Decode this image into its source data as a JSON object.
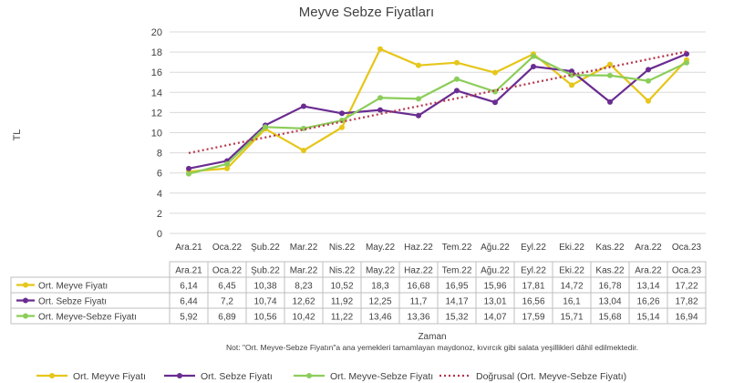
{
  "chart_data": {
    "type": "line",
    "title": "Meyve Sebze Fiyatları",
    "ylabel": "TL",
    "xlabel": "Zaman",
    "note": "Not: \"Ort. Meyve-Sebze Fiyatın\"a ana yemekleri tamamlayan maydonoz, kıvırcık gibi salata yeşillikleri dâhil edilmektedir.",
    "ylim": [
      0,
      20
    ],
    "yticks": [
      0,
      2,
      4,
      6,
      8,
      10,
      12,
      14,
      16,
      18,
      20
    ],
    "grid": true,
    "legend_position": "bottom",
    "categories": [
      "Ara.21",
      "Oca.22",
      "Şub.22",
      "Mar.22",
      "Nis.22",
      "May.22",
      "Haz.22",
      "Tem.22",
      "Ağu.22",
      "Eyl.22",
      "Eki.22",
      "Kas.22",
      "Ara.22",
      "Oca.23"
    ],
    "series": [
      {
        "name": "Ort. Meyve Fiyatı",
        "color": "#e6c619",
        "values": [
          6.14,
          6.45,
          10.38,
          8.23,
          10.52,
          18.3,
          16.68,
          16.95,
          15.96,
          17.81,
          14.72,
          16.78,
          13.14,
          17.22
        ],
        "labels": [
          "6,14",
          "6,45",
          "10,38",
          "8,23",
          "10,52",
          "18,3",
          "16,68",
          "16,95",
          "15,96",
          "17,81",
          "14,72",
          "16,78",
          "13,14",
          "17,22"
        ]
      },
      {
        "name": "Ort. Sebze Fiyatı",
        "color": "#6a2c91",
        "values": [
          6.44,
          7.2,
          10.74,
          12.62,
          11.92,
          12.25,
          11.7,
          14.17,
          13.01,
          16.56,
          16.1,
          13.04,
          16.26,
          17.82
        ],
        "labels": [
          "6,44",
          "7,2",
          "10,74",
          "12,62",
          "11,92",
          "12,25",
          "11,7",
          "14,17",
          "13,01",
          "16,56",
          "16,1",
          "13,04",
          "16,26",
          "17,82"
        ]
      },
      {
        "name": "Ort. Meyve-Sebze Fiyatı",
        "color": "#8ccd5a",
        "values": [
          5.92,
          6.89,
          10.56,
          10.42,
          11.22,
          13.46,
          13.36,
          15.32,
          14.07,
          17.59,
          15.71,
          15.68,
          15.14,
          16.94
        ],
        "labels": [
          "5,92",
          "6,89",
          "10,56",
          "10,42",
          "11,22",
          "13,46",
          "13,36",
          "15,32",
          "14,07",
          "17,59",
          "15,71",
          "15,68",
          "15,14",
          "16,94"
        ]
      }
    ],
    "trendline": {
      "name": "Doğrusal (Ort. Meyve-Sebze Fiyatı)",
      "color": "#b5334a",
      "of_series": "Ort. Meyve-Sebze Fiyatı"
    }
  }
}
